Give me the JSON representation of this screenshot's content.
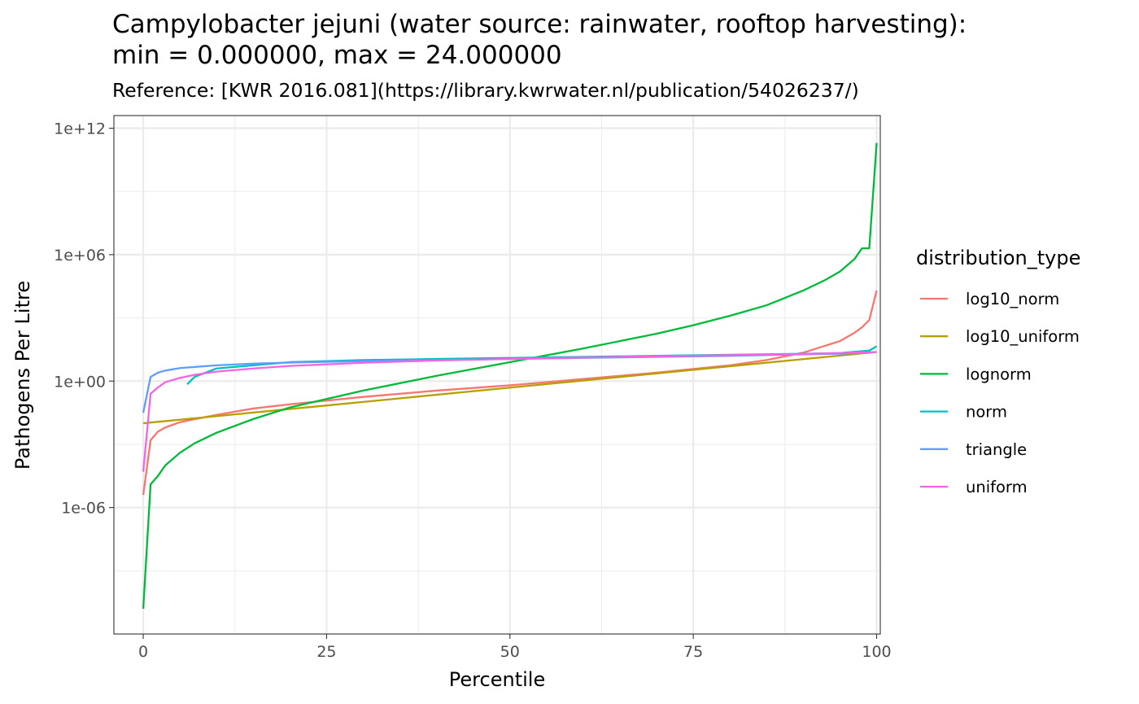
{
  "chart_data": {
    "type": "line",
    "title_lines": [
      "Campylobacter jejuni (water source: rainwater, rooftop harvesting):",
      "min = 0.000000, max = 24.000000"
    ],
    "subtitle": "Reference: [KWR 2016.081](https://library.kwrwater.nl/publication/54026237/)",
    "xlabel": "Percentile",
    "ylabel": "Pathogens Per Litre",
    "y_scale": "log10",
    "xlim": [
      -4,
      100.5
    ],
    "ylim_log10": [
      -12,
      12.6
    ],
    "x_ticks": [
      0,
      25,
      50,
      75,
      100
    ],
    "x_tick_labels": [
      "0",
      "25",
      "50",
      "75",
      "100"
    ],
    "y_ticks_log10": [
      -6,
      0,
      6,
      12
    ],
    "y_tick_labels": [
      "1e-06",
      "1e+00",
      "1e+06",
      "1e+12"
    ],
    "grid": true,
    "legend_title": "distribution_type",
    "legend_position": "right",
    "series": [
      {
        "name": "log10_norm",
        "color": "#F8766D",
        "x": [
          0,
          1,
          2,
          3,
          5,
          10,
          15,
          20,
          30,
          40,
          50,
          60,
          70,
          80,
          85,
          90,
          95,
          97,
          98,
          99,
          100
        ],
        "y_log10": [
          -5.4,
          -2.8,
          -2.4,
          -2.2,
          -1.95,
          -1.6,
          -1.3,
          -1.1,
          -0.75,
          -0.45,
          -0.2,
          0.1,
          0.4,
          0.75,
          1.0,
          1.35,
          1.9,
          2.3,
          2.55,
          2.9,
          4.3
        ]
      },
      {
        "name": "log10_uniform",
        "color": "#B79F00",
        "x": [
          0,
          100
        ],
        "y_log10": [
          -2.0,
          1.38
        ]
      },
      {
        "name": "lognorm",
        "color": "#00BA38",
        "x": [
          0,
          1,
          2,
          3,
          5,
          7,
          10,
          15,
          20,
          25,
          30,
          40,
          50,
          60,
          70,
          75,
          80,
          85,
          90,
          93,
          95,
          97,
          98,
          99,
          100
        ],
        "y_log10": [
          -10.8,
          -4.9,
          -4.5,
          -4.0,
          -3.4,
          -2.95,
          -2.45,
          -1.8,
          -1.25,
          -0.85,
          -0.45,
          0.25,
          0.9,
          1.55,
          2.25,
          2.65,
          3.1,
          3.6,
          4.3,
          4.8,
          5.2,
          5.8,
          6.3,
          6.3,
          11.3
        ]
      },
      {
        "name": "norm",
        "color": "#00BFC4",
        "x": [
          6,
          7,
          10,
          20,
          30,
          40,
          50,
          60,
          70,
          80,
          90,
          95,
          99,
          100
        ],
        "y_log10": [
          -0.15,
          0.2,
          0.6,
          0.9,
          1.0,
          1.05,
          1.1,
          1.15,
          1.2,
          1.25,
          1.3,
          1.33,
          1.45,
          1.65
        ]
      },
      {
        "name": "triangle",
        "color": "#619CFF",
        "x": [
          0,
          1,
          2,
          3,
          5,
          10,
          15,
          20,
          30,
          40,
          50,
          60,
          70,
          80,
          90,
          95,
          99,
          100
        ],
        "y_log10": [
          -1.5,
          0.2,
          0.4,
          0.5,
          0.62,
          0.75,
          0.83,
          0.88,
          0.95,
          1.0,
          1.05,
          1.1,
          1.15,
          1.2,
          1.27,
          1.3,
          1.35,
          1.38
        ]
      },
      {
        "name": "uniform",
        "color": "#F564E3",
        "x": [
          0,
          1,
          2,
          3,
          5,
          7,
          10,
          15,
          20,
          30,
          40,
          50,
          60,
          70,
          80,
          90,
          95,
          100
        ],
        "y_log10": [
          -4.3,
          -0.6,
          -0.3,
          -0.05,
          0.15,
          0.3,
          0.45,
          0.6,
          0.72,
          0.87,
          0.98,
          1.05,
          1.12,
          1.18,
          1.23,
          1.29,
          1.33,
          1.38
        ]
      }
    ]
  }
}
